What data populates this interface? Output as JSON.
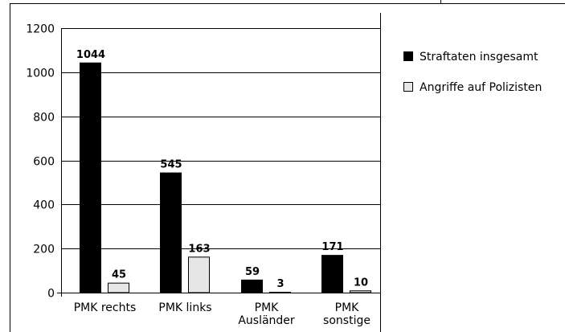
{
  "colors": {
    "series_dark": "#000000",
    "series_light": "#e6e6e6",
    "gridline": "#000000",
    "frame": "#000000",
    "background": "#ffffff"
  },
  "chart_data": {
    "type": "bar",
    "title": "",
    "xlabel": "",
    "ylabel": "",
    "ylim": [
      0,
      1200
    ],
    "yticks": [
      0,
      200,
      400,
      600,
      800,
      1000,
      1200
    ],
    "grid": true,
    "legend_position": "right",
    "categories": [
      [
        "PMK rechts"
      ],
      [
        "PMK links"
      ],
      [
        "PMK",
        "Ausländer"
      ],
      [
        "PMK",
        "sonstige"
      ]
    ],
    "series": [
      {
        "name": "Straftaten insgesamt",
        "color": "#000000",
        "values": [
          1044,
          545,
          59,
          171
        ]
      },
      {
        "name": "Angriffe auf Polizisten",
        "color": "#e6e6e6",
        "values": [
          45,
          163,
          3,
          10
        ]
      }
    ]
  }
}
